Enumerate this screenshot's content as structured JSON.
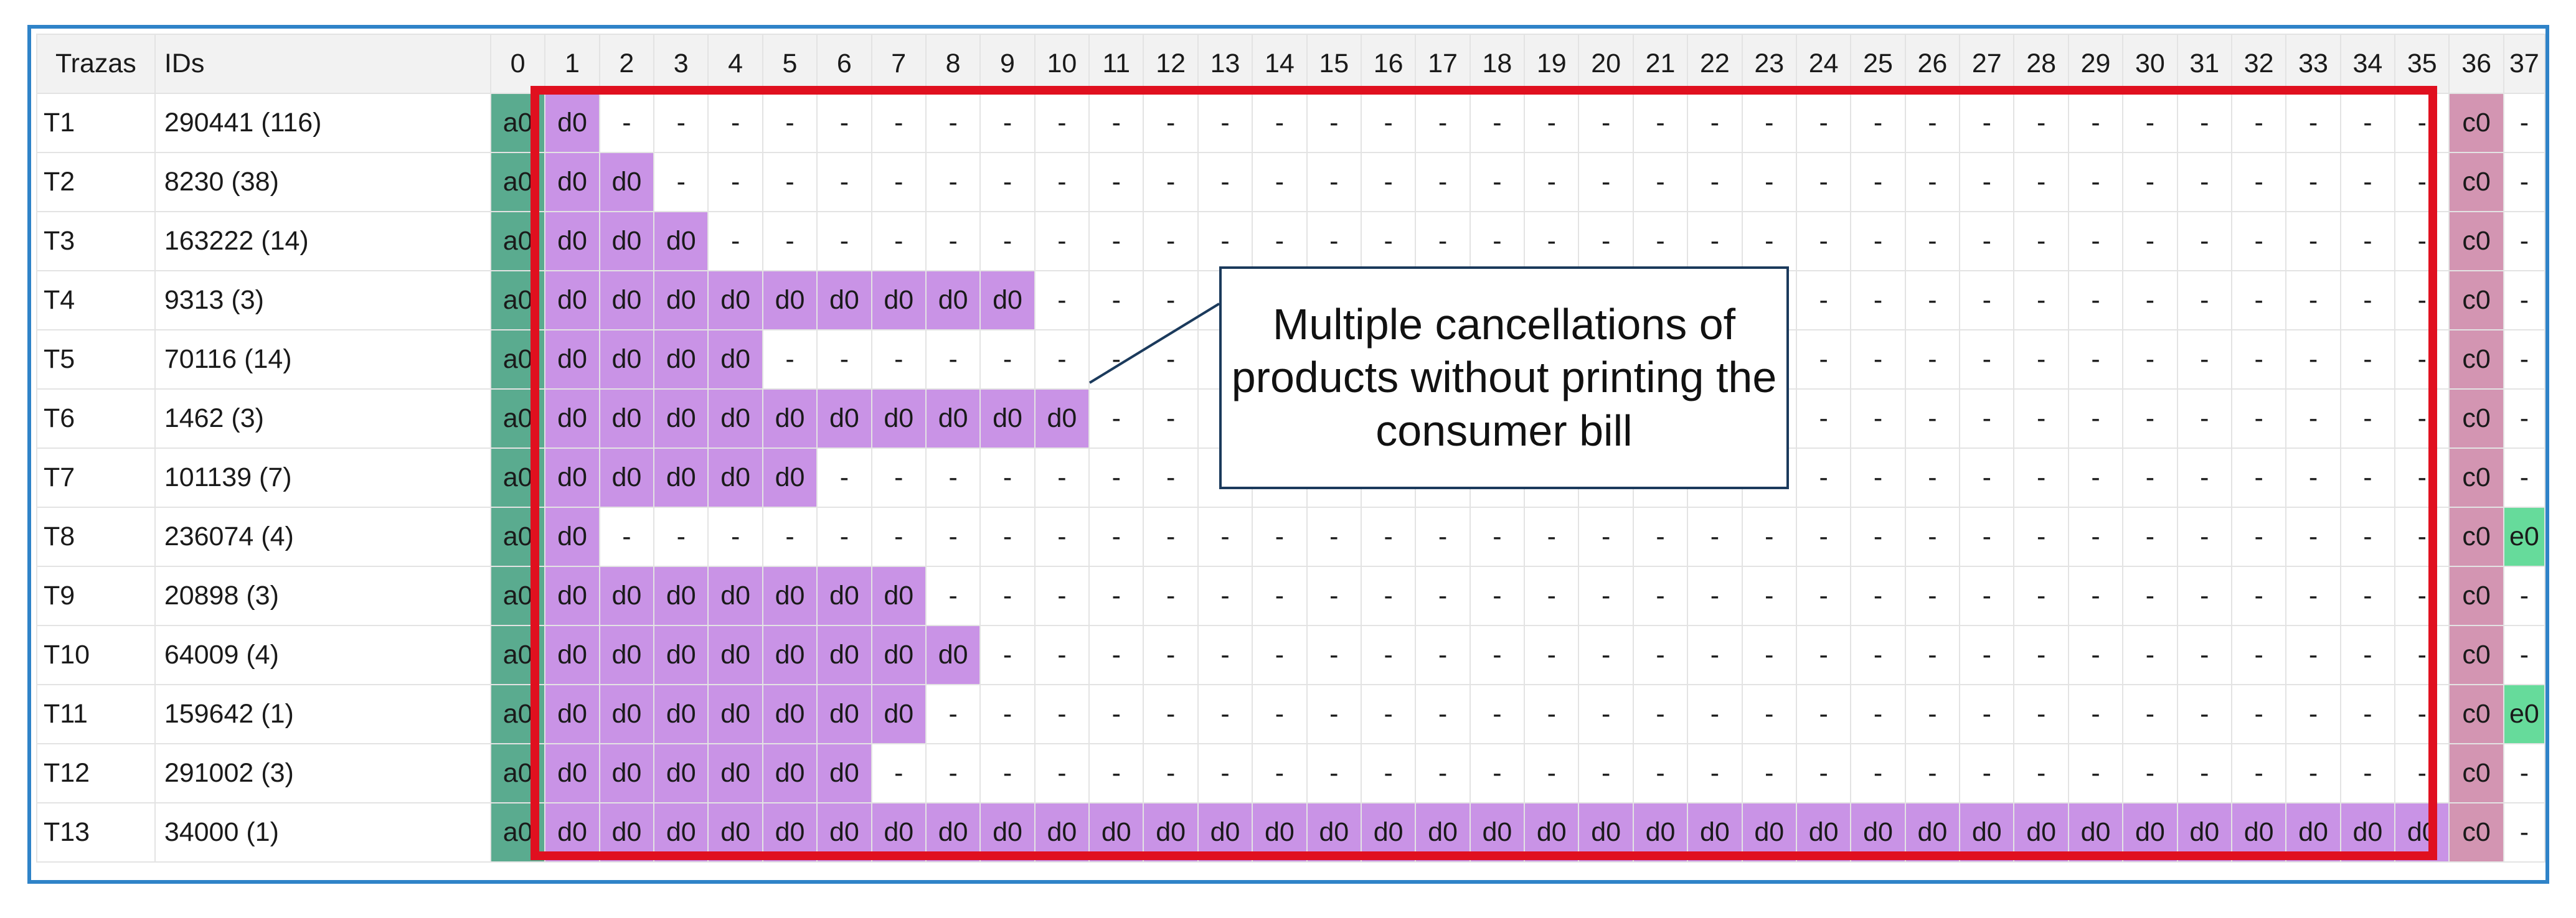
{
  "columns": {
    "traza_header": "Trazas",
    "ids_header": "IDs",
    "numbers": [
      "0",
      "1",
      "2",
      "3",
      "4",
      "5",
      "6",
      "7",
      "8",
      "9",
      "10",
      "11",
      "12",
      "13",
      "14",
      "15",
      "16",
      "17",
      "18",
      "19",
      "20",
      "21",
      "22",
      "23",
      "24",
      "25",
      "26",
      "27",
      "28",
      "29",
      "30",
      "31",
      "32",
      "33",
      "34",
      "35",
      "36",
      "37"
    ]
  },
  "rows": [
    {
      "traza": "T1",
      "ids": "290441 (116)",
      "cells": [
        "a0",
        "d0",
        "-",
        "-",
        "-",
        "-",
        "-",
        "-",
        "-",
        "-",
        "-",
        "-",
        "-",
        "-",
        "-",
        "-",
        "-",
        "-",
        "-",
        "-",
        "-",
        "-",
        "-",
        "-",
        "-",
        "-",
        "-",
        "-",
        "-",
        "-",
        "-",
        "-",
        "-",
        "-",
        "-",
        "-",
        "c0",
        "-"
      ]
    },
    {
      "traza": "T2",
      "ids": "8230 (38)",
      "cells": [
        "a0",
        "d0",
        "d0",
        "-",
        "-",
        "-",
        "-",
        "-",
        "-",
        "-",
        "-",
        "-",
        "-",
        "-",
        "-",
        "-",
        "-",
        "-",
        "-",
        "-",
        "-",
        "-",
        "-",
        "-",
        "-",
        "-",
        "-",
        "-",
        "-",
        "-",
        "-",
        "-",
        "-",
        "-",
        "-",
        "-",
        "c0",
        "-"
      ]
    },
    {
      "traza": "T3",
      "ids": "163222 (14)",
      "cells": [
        "a0",
        "d0",
        "d0",
        "d0",
        "-",
        "-",
        "-",
        "-",
        "-",
        "-",
        "-",
        "-",
        "-",
        "-",
        "-",
        "-",
        "-",
        "-",
        "-",
        "-",
        "-",
        "-",
        "-",
        "-",
        "-",
        "-",
        "-",
        "-",
        "-",
        "-",
        "-",
        "-",
        "-",
        "-",
        "-",
        "-",
        "c0",
        "-"
      ]
    },
    {
      "traza": "T4",
      "ids": "9313 (3)",
      "cells": [
        "a0",
        "d0",
        "d0",
        "d0",
        "d0",
        "d0",
        "d0",
        "d0",
        "d0",
        "d0",
        "-",
        "-",
        "-",
        "-",
        "-",
        "-",
        "-",
        "-",
        "-",
        "-",
        "-",
        "-",
        "-",
        "-",
        "-",
        "-",
        "-",
        "-",
        "-",
        "-",
        "-",
        "-",
        "-",
        "-",
        "-",
        "-",
        "c0",
        "-"
      ]
    },
    {
      "traza": "T5",
      "ids": "70116 (14)",
      "cells": [
        "a0",
        "d0",
        "d0",
        "d0",
        "d0",
        "-",
        "-",
        "-",
        "-",
        "-",
        "-",
        "-",
        "-",
        "-",
        "-",
        "-",
        "-",
        "-",
        "-",
        "-",
        "-",
        "-",
        "-",
        "-",
        "-",
        "-",
        "-",
        "-",
        "-",
        "-",
        "-",
        "-",
        "-",
        "-",
        "-",
        "-",
        "c0",
        "-"
      ]
    },
    {
      "traza": "T6",
      "ids": "1462 (3)",
      "cells": [
        "a0",
        "d0",
        "d0",
        "d0",
        "d0",
        "d0",
        "d0",
        "d0",
        "d0",
        "d0",
        "d0",
        "-",
        "-",
        "-",
        "-",
        "-",
        "-",
        "-",
        "-",
        "-",
        "-",
        "-",
        "-",
        "-",
        "-",
        "-",
        "-",
        "-",
        "-",
        "-",
        "-",
        "-",
        "-",
        "-",
        "-",
        "-",
        "c0",
        "-"
      ]
    },
    {
      "traza": "T7",
      "ids": "101139 (7)",
      "cells": [
        "a0",
        "d0",
        "d0",
        "d0",
        "d0",
        "d0",
        "-",
        "-",
        "-",
        "-",
        "-",
        "-",
        "-",
        "-",
        "-",
        "-",
        "-",
        "-",
        "-",
        "-",
        "-",
        "-",
        "-",
        "-",
        "-",
        "-",
        "-",
        "-",
        "-",
        "-",
        "-",
        "-",
        "-",
        "-",
        "-",
        "-",
        "c0",
        "-"
      ]
    },
    {
      "traza": "T8",
      "ids": "236074 (4)",
      "cells": [
        "a0",
        "d0",
        "-",
        "-",
        "-",
        "-",
        "-",
        "-",
        "-",
        "-",
        "-",
        "-",
        "-",
        "-",
        "-",
        "-",
        "-",
        "-",
        "-",
        "-",
        "-",
        "-",
        "-",
        "-",
        "-",
        "-",
        "-",
        "-",
        "-",
        "-",
        "-",
        "-",
        "-",
        "-",
        "-",
        "-",
        "c0",
        "e0"
      ]
    },
    {
      "traza": "T9",
      "ids": "20898 (3)",
      "cells": [
        "a0",
        "d0",
        "d0",
        "d0",
        "d0",
        "d0",
        "d0",
        "d0",
        "-",
        "-",
        "-",
        "-",
        "-",
        "-",
        "-",
        "-",
        "-",
        "-",
        "-",
        "-",
        "-",
        "-",
        "-",
        "-",
        "-",
        "-",
        "-",
        "-",
        "-",
        "-",
        "-",
        "-",
        "-",
        "-",
        "-",
        "-",
        "c0",
        "-"
      ]
    },
    {
      "traza": "T10",
      "ids": "64009 (4)",
      "cells": [
        "a0",
        "d0",
        "d0",
        "d0",
        "d0",
        "d0",
        "d0",
        "d0",
        "d0",
        "-",
        "-",
        "-",
        "-",
        "-",
        "-",
        "-",
        "-",
        "-",
        "-",
        "-",
        "-",
        "-",
        "-",
        "-",
        "-",
        "-",
        "-",
        "-",
        "-",
        "-",
        "-",
        "-",
        "-",
        "-",
        "-",
        "-",
        "c0",
        "-"
      ]
    },
    {
      "traza": "T11",
      "ids": "159642 (1)",
      "cells": [
        "a0",
        "d0",
        "d0",
        "d0",
        "d0",
        "d0",
        "d0",
        "d0",
        "-",
        "-",
        "-",
        "-",
        "-",
        "-",
        "-",
        "-",
        "-",
        "-",
        "-",
        "-",
        "-",
        "-",
        "-",
        "-",
        "-",
        "-",
        "-",
        "-",
        "-",
        "-",
        "-",
        "-",
        "-",
        "-",
        "-",
        "-",
        "c0",
        "e0"
      ]
    },
    {
      "traza": "T12",
      "ids": "291002 (3)",
      "cells": [
        "a0",
        "d0",
        "d0",
        "d0",
        "d0",
        "d0",
        "d0",
        "-",
        "-",
        "-",
        "-",
        "-",
        "-",
        "-",
        "-",
        "-",
        "-",
        "-",
        "-",
        "-",
        "-",
        "-",
        "-",
        "-",
        "-",
        "-",
        "-",
        "-",
        "-",
        "-",
        "-",
        "-",
        "-",
        "-",
        "-",
        "-",
        "c0",
        "-"
      ]
    },
    {
      "traza": "T13",
      "ids": "34000 (1)",
      "cells": [
        "a0",
        "d0",
        "d0",
        "d0",
        "d0",
        "d0",
        "d0",
        "d0",
        "d0",
        "d0",
        "d0",
        "d0",
        "d0",
        "d0",
        "d0",
        "d0",
        "d0",
        "d0",
        "d0",
        "d0",
        "d0",
        "d0",
        "d0",
        "d0",
        "d0",
        "d0",
        "d0",
        "d0",
        "d0",
        "d0",
        "d0",
        "d0",
        "d0",
        "d0",
        "d0",
        "d0",
        "c0",
        "-"
      ]
    }
  ],
  "callout": {
    "text": "Multiple cancellations of products without printing the consumer bill"
  },
  "colors": {
    "a0": "#5aab8f",
    "d0": "#c993e6",
    "c0": "#d395b2",
    "e0": "#66db9b",
    "highlight_box": "#e0101f",
    "frame": "#2f83c8"
  }
}
